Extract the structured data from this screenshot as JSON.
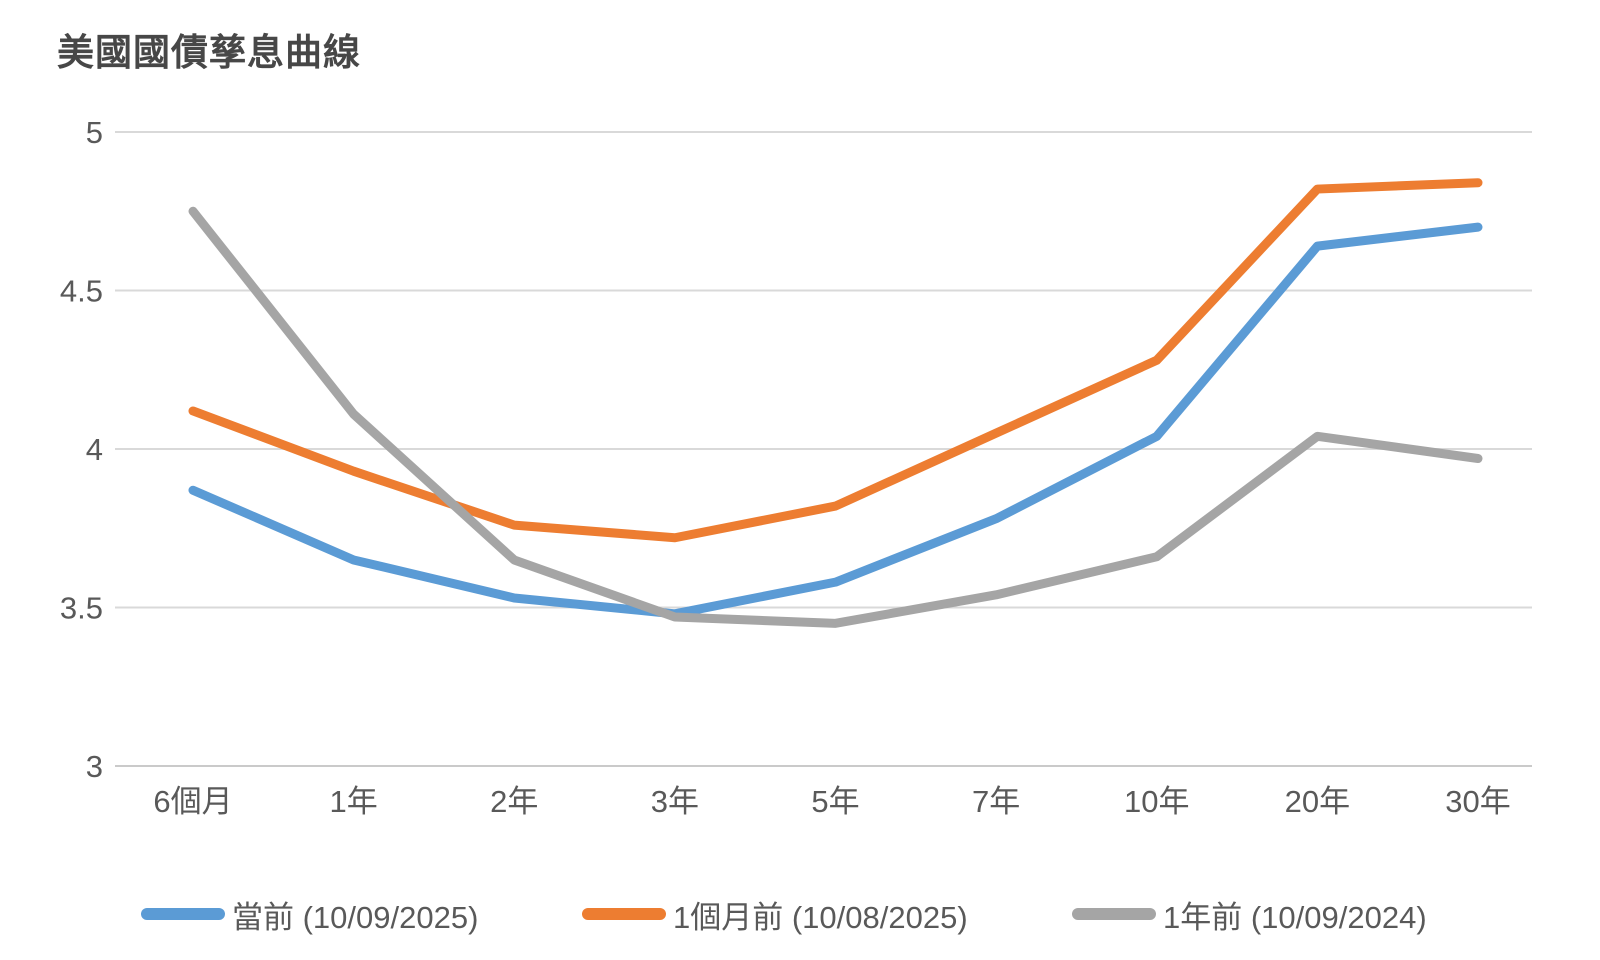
{
  "chart_data": {
    "type": "line",
    "title": "美國國債孳息曲線",
    "categories": [
      "6個月",
      "1年",
      "2年",
      "3年",
      "5年",
      "7年",
      "10年",
      "20年",
      "30年"
    ],
    "series": [
      {
        "name": "當前 (10/09/2025)",
        "color": "#5B9BD5",
        "values": [
          3.87,
          3.65,
          3.53,
          3.48,
          3.58,
          3.78,
          4.04,
          4.64,
          4.7
        ]
      },
      {
        "name": "1個月前 (10/08/2025)",
        "color": "#ED7D31",
        "values": [
          4.12,
          3.93,
          3.76,
          3.72,
          3.82,
          4.05,
          4.28,
          4.82,
          4.84
        ]
      },
      {
        "name": "1年前 (10/09/2024)",
        "color": "#A5A5A5",
        "values": [
          4.75,
          4.11,
          3.65,
          3.47,
          3.45,
          3.54,
          3.66,
          4.04,
          3.97
        ]
      }
    ],
    "y_ticks": [
      "5",
      "4.5",
      "4",
      "3.5",
      "3"
    ],
    "ylim": [
      3,
      5
    ],
    "grid": true,
    "legend_position": "bottom",
    "style": {
      "gridline_color": "#D9D9D9",
      "baseline_color": "#CACACA",
      "axis_label_color": "#595959",
      "title_color": "#474747",
      "background": "#FFFFFF"
    }
  }
}
